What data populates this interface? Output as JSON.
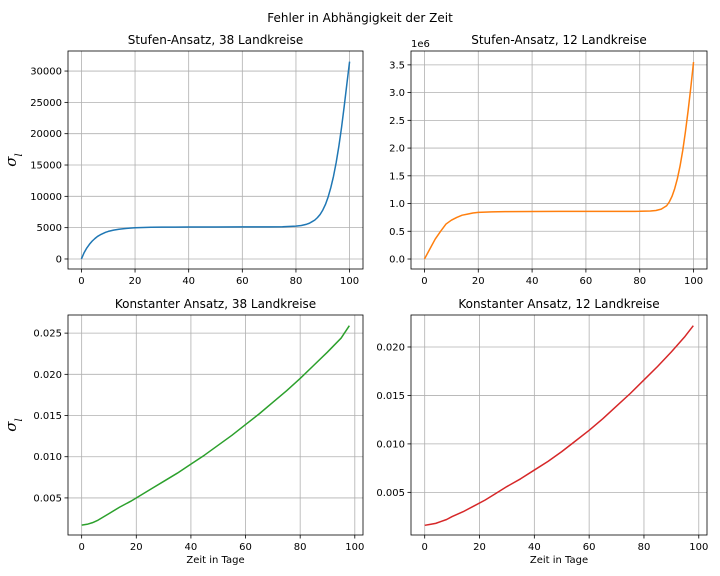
{
  "figure_title": "Fehler in Abhängigkeit der Zeit",
  "chart_data": [
    {
      "type": "line",
      "title": "Stufen-Ansatz, 38 Landkreise",
      "xlabel": "",
      "ylabel": "σ_l",
      "xlim": [
        -5,
        105
      ],
      "ylim": [
        -1600,
        33200
      ],
      "xticks": [
        0,
        20,
        40,
        60,
        80,
        100
      ],
      "yticks": [
        0,
        5000,
        10000,
        15000,
        20000,
        25000,
        30000
      ],
      "yticklabels": [
        "0",
        "5000",
        "10000",
        "15000",
        "20000",
        "25000",
        "30000"
      ],
      "offset_text": "",
      "grid": true,
      "color": "#1f77b4",
      "series": [
        {
          "x": [
            0,
            1,
            2,
            3,
            4,
            5,
            6,
            7,
            8,
            9,
            10,
            12,
            14,
            16,
            18,
            20,
            23,
            26,
            30,
            35,
            40,
            50,
            60,
            70,
            75,
            80,
            82,
            84,
            85,
            86,
            87,
            88,
            89,
            90,
            91,
            92,
            93,
            94,
            95,
            96,
            97,
            98,
            99,
            100
          ],
          "y": [
            0,
            1000,
            1750,
            2350,
            2850,
            3250,
            3600,
            3850,
            4050,
            4250,
            4400,
            4600,
            4750,
            4850,
            4930,
            4980,
            5030,
            5060,
            5080,
            5090,
            5100,
            5110,
            5120,
            5130,
            5150,
            5250,
            5350,
            5550,
            5700,
            5950,
            6200,
            6600,
            7100,
            7800,
            8700,
            9900,
            11400,
            13200,
            15400,
            18000,
            21000,
            24400,
            28000,
            31500
          ]
        }
      ]
    },
    {
      "type": "line",
      "title": "Stufen-Ansatz, 12 Landkreise",
      "xlabel": "",
      "ylabel": "",
      "xlim": [
        -5,
        105
      ],
      "ylim": [
        -0.18,
        3.75
      ],
      "xticks": [
        0,
        20,
        40,
        60,
        80,
        100
      ],
      "yticks": [
        0,
        0.5,
        1.0,
        1.5,
        2.0,
        2.5,
        3.0,
        3.5
      ],
      "yticklabels": [
        "0.0",
        "0.5",
        "1.0",
        "1.5",
        "2.0",
        "2.5",
        "3.0",
        "3.5"
      ],
      "offset_text": "1e6",
      "grid": true,
      "color": "#ff7f0e",
      "series": [
        {
          "x": [
            0,
            2,
            4,
            6,
            8,
            10,
            12,
            14,
            16,
            18,
            20,
            25,
            30,
            40,
            50,
            60,
            70,
            80,
            84,
            86,
            88,
            90,
            91,
            92,
            93,
            94,
            95,
            96,
            97,
            98,
            99,
            100
          ],
          "y": [
            0,
            0.18,
            0.36,
            0.5,
            0.63,
            0.7,
            0.75,
            0.79,
            0.81,
            0.83,
            0.84,
            0.85,
            0.855,
            0.857,
            0.858,
            0.858,
            0.859,
            0.86,
            0.865,
            0.875,
            0.9,
            0.96,
            1.03,
            1.13,
            1.27,
            1.45,
            1.68,
            1.96,
            2.3,
            2.68,
            3.1,
            3.55
          ]
        }
      ]
    },
    {
      "type": "line",
      "title": "Konstanter Ansatz, 38 Landkreise",
      "xlabel": "Zeit in Tage",
      "ylabel": "σ_l",
      "xlim": [
        -5,
        103
      ],
      "ylim": [
        0.0005,
        0.0272
      ],
      "xticks": [
        0,
        20,
        40,
        60,
        80,
        100
      ],
      "yticks": [
        0.005,
        0.01,
        0.015,
        0.02,
        0.025
      ],
      "yticklabels": [
        "0.005",
        "0.010",
        "0.015",
        "0.020",
        "0.025"
      ],
      "offset_text": "",
      "grid": true,
      "color": "#2ca02c",
      "series": [
        {
          "x": [
            0,
            2,
            4,
            6,
            8,
            10,
            14,
            18,
            22,
            26,
            30,
            35,
            40,
            45,
            50,
            55,
            60,
            65,
            70,
            75,
            80,
            85,
            90,
            95,
            98
          ],
          "y": [
            0.0017,
            0.0018,
            0.002,
            0.0023,
            0.0027,
            0.0031,
            0.0039,
            0.0046,
            0.0054,
            0.0062,
            0.007,
            0.008,
            0.0091,
            0.0102,
            0.0114,
            0.0126,
            0.0139,
            0.0152,
            0.0166,
            0.018,
            0.0195,
            0.0211,
            0.0227,
            0.0244,
            0.0259
          ]
        }
      ]
    },
    {
      "type": "line",
      "title": "Konstanter Ansatz, 12 Landkreise",
      "xlabel": "Zeit in Tage",
      "ylabel": "",
      "xlim": [
        -5,
        103
      ],
      "ylim": [
        0.0006,
        0.0233
      ],
      "xticks": [
        0,
        20,
        40,
        60,
        80,
        100
      ],
      "yticks": [
        0.005,
        0.01,
        0.015,
        0.02
      ],
      "yticklabels": [
        "0.005",
        "0.010",
        "0.015",
        "0.020"
      ],
      "offset_text": "",
      "grid": true,
      "color": "#d62728",
      "series": [
        {
          "x": [
            0,
            2,
            4,
            6,
            8,
            10,
            14,
            18,
            22,
            26,
            30,
            35,
            40,
            45,
            50,
            55,
            60,
            65,
            70,
            75,
            80,
            85,
            90,
            95,
            98
          ],
          "y": [
            0.0016,
            0.0017,
            0.0018,
            0.002,
            0.0022,
            0.0025,
            0.003,
            0.0036,
            0.0042,
            0.0049,
            0.0056,
            0.0064,
            0.0073,
            0.0082,
            0.0092,
            0.0103,
            0.0114,
            0.0126,
            0.0139,
            0.0152,
            0.0166,
            0.018,
            0.0195,
            0.0211,
            0.0222
          ]
        }
      ]
    }
  ]
}
